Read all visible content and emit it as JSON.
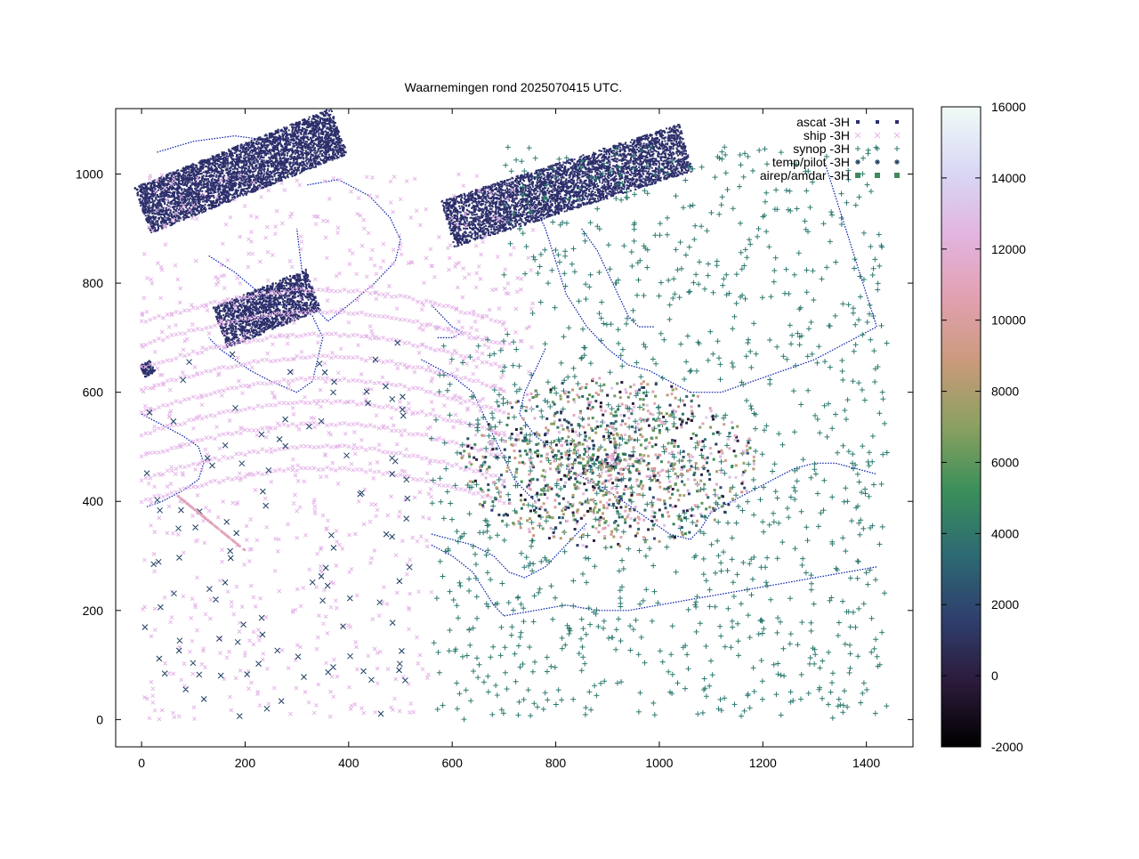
{
  "chart_data": {
    "type": "scatter",
    "title": "Waarnemingen rond 2025070415 UTC.",
    "xlim": [
      -50,
      1490
    ],
    "ylim": [
      -50,
      1120
    ],
    "x_ticks": [
      0,
      200,
      400,
      600,
      800,
      1000,
      1200,
      1400
    ],
    "y_ticks": [
      0,
      200,
      400,
      600,
      800,
      1000
    ],
    "grid": false,
    "legend_position": "top-right",
    "colorbar": {
      "min": -2000,
      "max": 16000,
      "ticks": [
        -2000,
        0,
        2000,
        4000,
        6000,
        8000,
        10000,
        12000,
        14000,
        16000
      ],
      "palette": [
        "#000000",
        "#2b1a3a",
        "#2f3f6e",
        "#2d6a73",
        "#3a8f5a",
        "#8aa060",
        "#c99a7a",
        "#e2a0b0",
        "#e2b4e0",
        "#d8d8f5",
        "#f0fbf6"
      ]
    },
    "series": [
      {
        "name": "ascat -3H",
        "marker": "dot",
        "color": "#2c2e6b"
      },
      {
        "name": "ship -3H",
        "marker": "x",
        "color": "#e4b4e8"
      },
      {
        "name": "synop -3H",
        "marker": "plus",
        "color": "#2d7a70"
      },
      {
        "name": "temp/pilot -3H",
        "marker": "star",
        "color": "#1c3c60"
      },
      {
        "name": "airep/amdar -3H",
        "marker": "square",
        "color": "#3d8a5a"
      }
    ]
  }
}
